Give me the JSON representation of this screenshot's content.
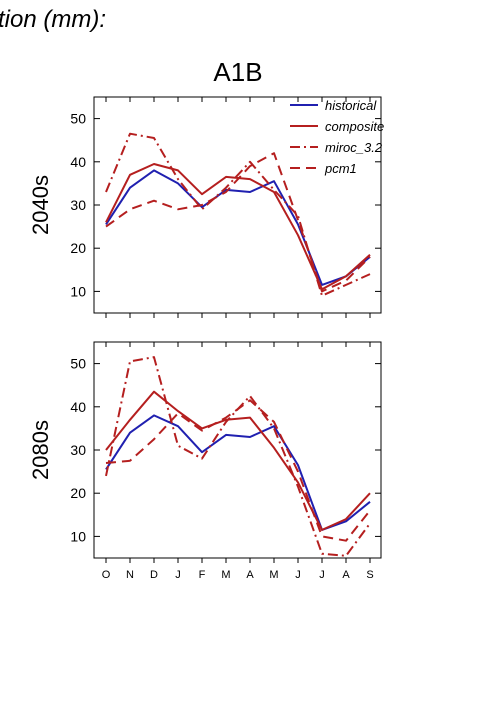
{
  "header": {
    "title_fragment": "tion (mm):"
  },
  "scenario": "A1B",
  "colors": {
    "historical": "#2020b0",
    "model": "#b51f1f"
  },
  "chart_data": [
    {
      "type": "line",
      "panel_label": "2040s",
      "categories": [
        "O",
        "N",
        "D",
        "J",
        "F",
        "M",
        "A",
        "M",
        "J",
        "J",
        "A",
        "S"
      ],
      "ylim": [
        5,
        55
      ],
      "yticks": [
        10,
        20,
        30,
        40,
        50
      ],
      "legend_position": "top-right",
      "series": [
        {
          "name": "historical",
          "style": "solid",
          "color": "#2020b0",
          "values": [
            25.5,
            34,
            38,
            35,
            29.5,
            33.5,
            33,
            35.5,
            25.5,
            11.5,
            13.5,
            18
          ]
        },
        {
          "name": "composite",
          "style": "solid",
          "color": "#b51f1f",
          "values": [
            26,
            37,
            39.5,
            38,
            32.5,
            36.5,
            36,
            33,
            23,
            10.5,
            13.5,
            18.5
          ]
        },
        {
          "name": "miroc_3.2",
          "style": "dashdot",
          "color": "#b51f1f",
          "values": [
            33,
            46.5,
            45.5,
            36,
            29,
            34,
            40,
            33.5,
            27.5,
            9,
            11.5,
            14
          ]
        },
        {
          "name": "pcm1",
          "style": "dash",
          "color": "#b51f1f",
          "values": [
            25,
            29,
            31,
            29,
            30,
            33,
            39,
            42,
            26.5,
            10,
            12.5,
            18
          ]
        }
      ]
    },
    {
      "type": "line",
      "panel_label": "2080s",
      "categories": [
        "O",
        "N",
        "D",
        "J",
        "F",
        "M",
        "A",
        "M",
        "J",
        "J",
        "A",
        "S"
      ],
      "ylim": [
        5,
        55
      ],
      "yticks": [
        10,
        20,
        30,
        40,
        50
      ],
      "series": [
        {
          "name": "historical",
          "style": "solid",
          "color": "#2020b0",
          "values": [
            25.5,
            34,
            38,
            35.5,
            29.5,
            33.5,
            33,
            35.5,
            26.5,
            11.5,
            13.5,
            18
          ]
        },
        {
          "name": "composite",
          "style": "solid",
          "color": "#b51f1f",
          "values": [
            30,
            37,
            43.5,
            39,
            35,
            37,
            37.5,
            30.5,
            22.5,
            11.5,
            14,
            20
          ]
        },
        {
          "name": "miroc_3.2",
          "style": "dashdot",
          "color": "#b51f1f",
          "values": [
            24,
            50.5,
            51.5,
            31,
            28,
            36.5,
            42.5,
            35,
            21.5,
            6,
            5.5,
            13
          ]
        },
        {
          "name": "pcm1",
          "style": "dash",
          "color": "#b51f1f",
          "values": [
            27,
            27.5,
            32.5,
            38.5,
            34.5,
            37.5,
            41.5,
            36.5,
            25,
            10,
            9,
            16
          ]
        }
      ]
    }
  ]
}
